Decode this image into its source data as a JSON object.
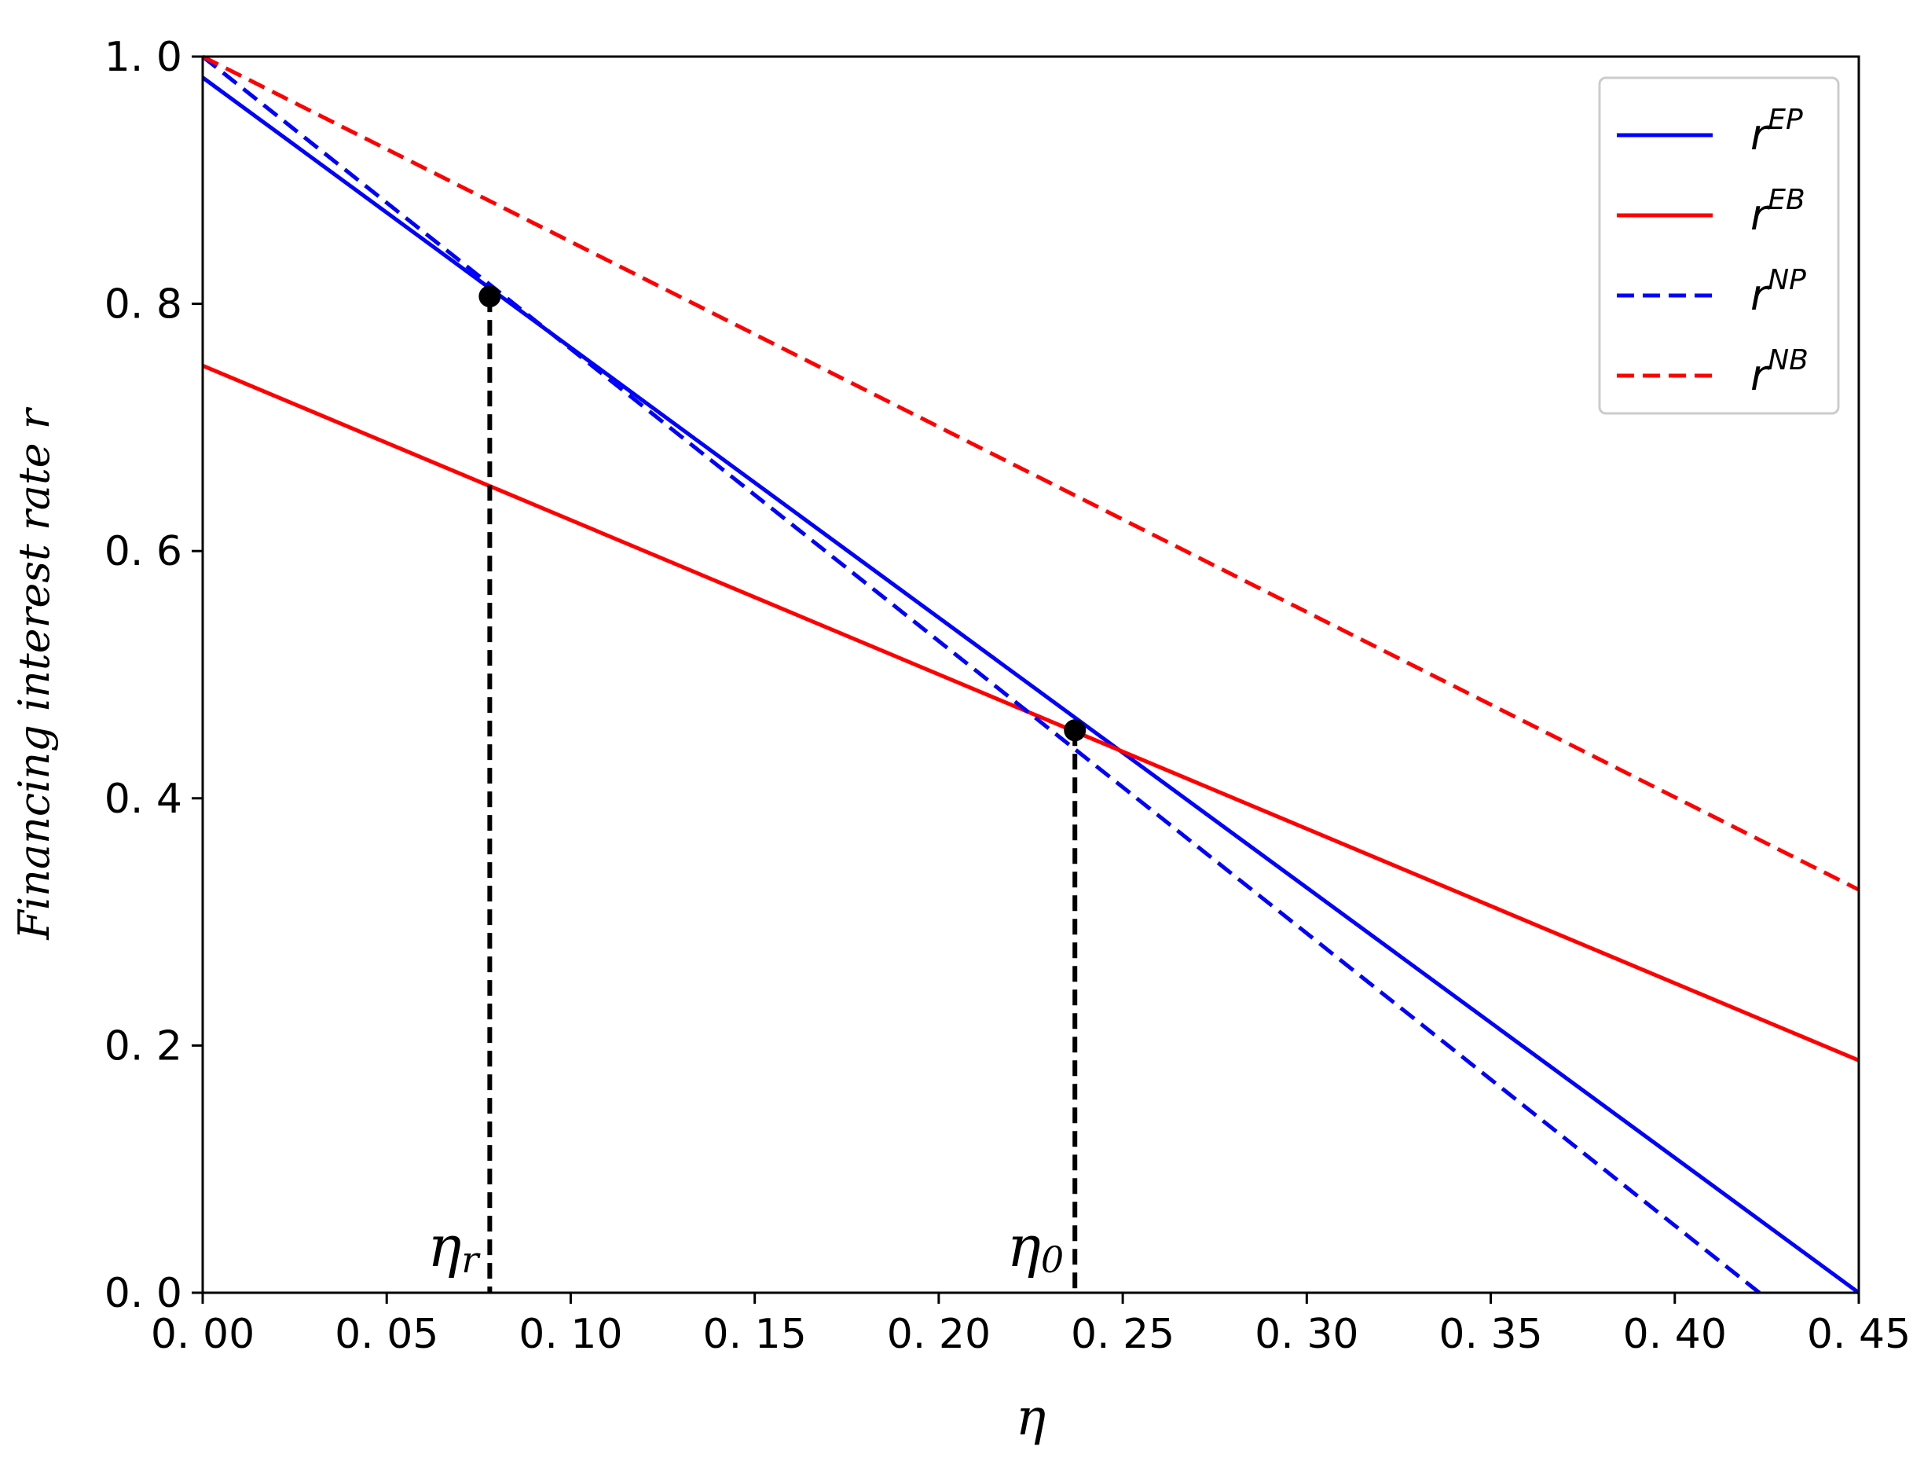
{
  "chart_data": {
    "type": "line",
    "title": "",
    "xlabel": "η",
    "ylabel": "Financing interest rate r",
    "xlim": [
      0,
      0.45
    ],
    "ylim": [
      0,
      1.0
    ],
    "xticks": [
      0,
      0.05,
      0.1,
      0.15,
      0.2,
      0.25,
      0.3,
      0.35,
      0.4,
      0.45
    ],
    "xtick_labels": [
      "0. 00",
      "0. 05",
      "0. 10",
      "0. 15",
      "0. 20",
      "0. 25",
      "0. 30",
      "0. 35",
      "0. 40",
      "0. 45"
    ],
    "yticks": [
      0,
      0.2,
      0.4,
      0.6,
      0.8,
      1.0
    ],
    "ytick_labels": [
      "0. 0",
      "0. 2",
      "0. 4",
      "0. 6",
      "0. 8",
      "1. 0"
    ],
    "grid": false,
    "legend_position": "top-right",
    "series": [
      {
        "name": "EP",
        "legend_base": "r",
        "legend_sup": "EP",
        "color": "#0000ff",
        "style": "solid",
        "x": [
          0,
          0.45
        ],
        "y": [
          0.983,
          0.0
        ]
      },
      {
        "name": "EB",
        "legend_base": "r",
        "legend_sup": "EB",
        "color": "#ff0000",
        "style": "solid",
        "x": [
          0,
          0.45
        ],
        "y": [
          0.75,
          0.188
        ]
      },
      {
        "name": "NP",
        "legend_base": "r",
        "legend_sup": "NP",
        "color": "#0000ff",
        "style": "dashed",
        "x": [
          0,
          0.423
        ],
        "y": [
          1.0,
          0.0
        ]
      },
      {
        "name": "NB",
        "legend_base": "r",
        "legend_sup": "NB",
        "color": "#ff0000",
        "style": "dashed",
        "x": [
          0,
          0.45
        ],
        "y": [
          1.0,
          0.326
        ]
      }
    ],
    "points": [
      {
        "x": 0.078,
        "y": 0.806,
        "label": "η",
        "sub": "r"
      },
      {
        "x": 0.237,
        "y": 0.455,
        "label": "η",
        "sub": "0"
      }
    ]
  }
}
